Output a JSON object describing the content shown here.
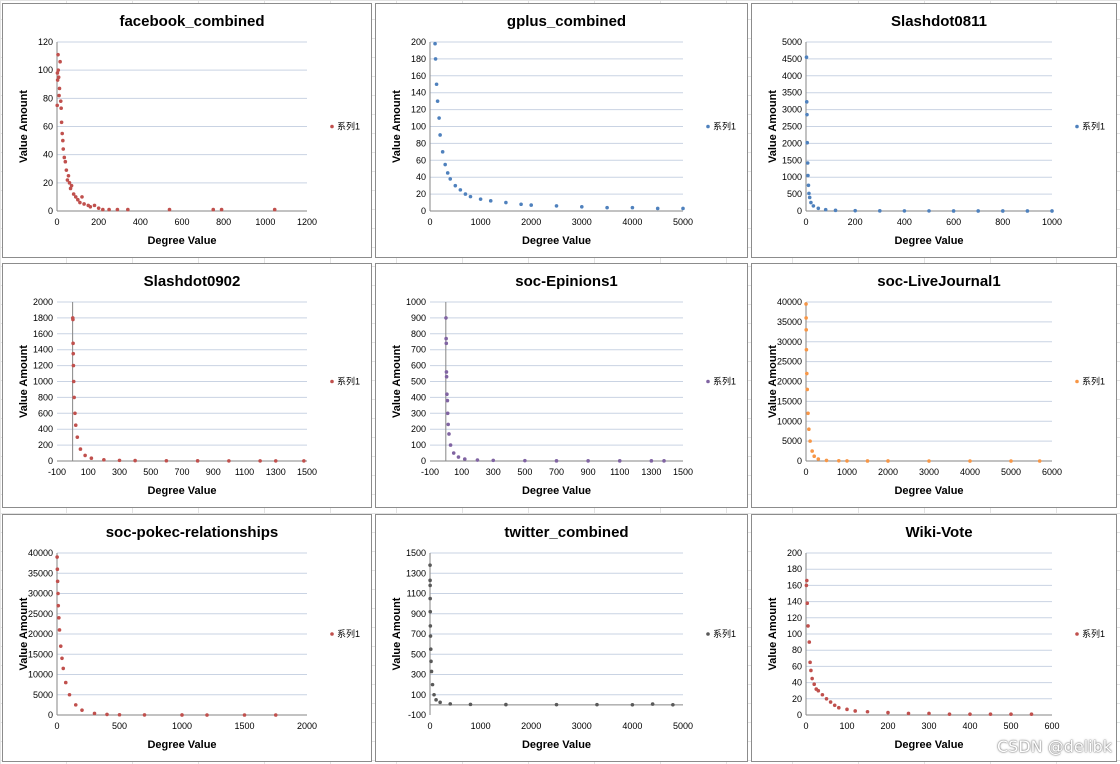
{
  "watermark": "CSDN @delibk",
  "chart_data": [
    {
      "type": "scatter",
      "title": "facebook_combined",
      "xlabel": "Degree Value",
      "ylabel": "Value Amount",
      "legend": "系列1",
      "legend_position": "right",
      "grid": "horizontal",
      "color": "#C0504D",
      "xlim": [
        0,
        1200
      ],
      "xticks": [
        0,
        200,
        400,
        600,
        800,
        1000,
        1200
      ],
      "ylim": [
        0,
        120
      ],
      "yticks": [
        0,
        20,
        40,
        60,
        80,
        100,
        120
      ],
      "points": [
        [
          1,
          75
        ],
        [
          2,
          98
        ],
        [
          3,
          93
        ],
        [
          5,
          111
        ],
        [
          6,
          100
        ],
        [
          8,
          95
        ],
        [
          10,
          82
        ],
        [
          12,
          87
        ],
        [
          15,
          106
        ],
        [
          18,
          78
        ],
        [
          20,
          73
        ],
        [
          22,
          63
        ],
        [
          25,
          55
        ],
        [
          28,
          50
        ],
        [
          30,
          44
        ],
        [
          35,
          38
        ],
        [
          40,
          35
        ],
        [
          45,
          29
        ],
        [
          50,
          22
        ],
        [
          55,
          25
        ],
        [
          60,
          20
        ],
        [
          65,
          16
        ],
        [
          70,
          18
        ],
        [
          80,
          12
        ],
        [
          90,
          10
        ],
        [
          100,
          8
        ],
        [
          110,
          6
        ],
        [
          120,
          10
        ],
        [
          130,
          5
        ],
        [
          150,
          4
        ],
        [
          160,
          3
        ],
        [
          180,
          4
        ],
        [
          200,
          2
        ],
        [
          220,
          1
        ],
        [
          250,
          1
        ],
        [
          290,
          1
        ],
        [
          340,
          1
        ],
        [
          540,
          1
        ],
        [
          750,
          1
        ],
        [
          790,
          1
        ],
        [
          1045,
          1
        ]
      ]
    },
    {
      "type": "scatter",
      "title": "gplus_combined",
      "xlabel": "Degree Value",
      "ylabel": "Value Amount",
      "legend": "系列1",
      "legend_position": "right",
      "grid": "horizontal",
      "color": "#4F81BD",
      "xlim": [
        0,
        5000
      ],
      "xticks": [
        0,
        1000,
        2000,
        3000,
        4000,
        5000
      ],
      "ylim": [
        0,
        200
      ],
      "yticks": [
        0,
        20,
        40,
        60,
        80,
        100,
        120,
        140,
        160,
        180,
        200
      ],
      "points": [
        [
          100,
          198
        ],
        [
          110,
          180
        ],
        [
          130,
          150
        ],
        [
          150,
          130
        ],
        [
          180,
          110
        ],
        [
          200,
          90
        ],
        [
          250,
          70
        ],
        [
          300,
          55
        ],
        [
          350,
          45
        ],
        [
          400,
          38
        ],
        [
          500,
          30
        ],
        [
          600,
          25
        ],
        [
          700,
          20
        ],
        [
          800,
          17
        ],
        [
          1000,
          14
        ],
        [
          1200,
          12
        ],
        [
          1500,
          10
        ],
        [
          1800,
          8
        ],
        [
          2000,
          7
        ],
        [
          2500,
          6
        ],
        [
          3000,
          5
        ],
        [
          3500,
          4
        ],
        [
          4000,
          4
        ],
        [
          4500,
          3
        ],
        [
          5000,
          3
        ]
      ]
    },
    {
      "type": "scatter",
      "title": "Slashdot0811",
      "xlabel": "Degree Value",
      "ylabel": "Value Amount",
      "legend": "系列1",
      "legend_position": "right",
      "grid": "horizontal",
      "color": "#4F81BD",
      "xlim": [
        0,
        1000
      ],
      "xticks": [
        0,
        200,
        400,
        600,
        800,
        1000
      ],
      "ylim": [
        0,
        5000
      ],
      "yticks": [
        0,
        500,
        1000,
        1500,
        2000,
        2500,
        3000,
        3500,
        4000,
        4500,
        5000
      ],
      "points": [
        [
          2,
          4550
        ],
        [
          3,
          3230
        ],
        [
          4,
          2850
        ],
        [
          5,
          2020
        ],
        [
          7,
          1420
        ],
        [
          8,
          1050
        ],
        [
          10,
          760
        ],
        [
          12,
          520
        ],
        [
          15,
          400
        ],
        [
          20,
          250
        ],
        [
          30,
          150
        ],
        [
          50,
          80
        ],
        [
          80,
          40
        ],
        [
          120,
          20
        ],
        [
          200,
          10
        ],
        [
          300,
          5
        ],
        [
          400,
          3
        ],
        [
          500,
          2
        ],
        [
          600,
          1
        ],
        [
          700,
          1
        ],
        [
          800,
          1
        ],
        [
          900,
          1
        ],
        [
          1000,
          1
        ]
      ]
    },
    {
      "type": "scatter",
      "title": "Slashdot0902",
      "xlabel": "Degree Value",
      "ylabel": "Value Amount",
      "legend": "系列1",
      "legend_position": "right",
      "grid": "horizontal",
      "color": "#C0504D",
      "xlim": [
        -100,
        1500
      ],
      "xticks": [
        -100,
        100,
        300,
        500,
        700,
        900,
        1100,
        1300,
        1500
      ],
      "ylim": [
        0,
        2000
      ],
      "yticks": [
        0,
        200,
        400,
        600,
        800,
        1000,
        1200,
        1400,
        1600,
        1800,
        2000
      ],
      "points": [
        [
          1,
          1800
        ],
        [
          2,
          1780
        ],
        [
          3,
          1480
        ],
        [
          4,
          1350
        ],
        [
          5,
          1200
        ],
        [
          7,
          1000
        ],
        [
          10,
          800
        ],
        [
          15,
          600
        ],
        [
          20,
          450
        ],
        [
          30,
          300
        ],
        [
          50,
          150
        ],
        [
          80,
          70
        ],
        [
          120,
          35
        ],
        [
          200,
          15
        ],
        [
          300,
          8
        ],
        [
          400,
          5
        ],
        [
          600,
          3
        ],
        [
          800,
          2
        ],
        [
          1000,
          1
        ],
        [
          1200,
          1
        ],
        [
          1300,
          1
        ],
        [
          1480,
          1
        ]
      ]
    },
    {
      "type": "scatter",
      "title": "soc-Epinions1",
      "xlabel": "Degree Value",
      "ylabel": "Value Amount",
      "legend": "系列1",
      "legend_position": "right",
      "grid": "horizontal",
      "color": "#8064A2",
      "xlim": [
        -100,
        1500
      ],
      "xticks": [
        -100,
        100,
        300,
        500,
        700,
        900,
        1100,
        1300,
        1500
      ],
      "ylim": [
        0,
        1000
      ],
      "yticks": [
        0,
        100,
        200,
        300,
        400,
        500,
        600,
        700,
        800,
        900,
        1000
      ],
      "points": [
        [
          1,
          900
        ],
        [
          2,
          770
        ],
        [
          3,
          740
        ],
        [
          4,
          560
        ],
        [
          5,
          530
        ],
        [
          7,
          420
        ],
        [
          10,
          380
        ],
        [
          12,
          300
        ],
        [
          15,
          230
        ],
        [
          20,
          170
        ],
        [
          30,
          100
        ],
        [
          50,
          50
        ],
        [
          80,
          25
        ],
        [
          120,
          12
        ],
        [
          200,
          6
        ],
        [
          300,
          4
        ],
        [
          500,
          2
        ],
        [
          700,
          1
        ],
        [
          900,
          1
        ],
        [
          1100,
          1
        ],
        [
          1300,
          1
        ],
        [
          1380,
          1
        ]
      ]
    },
    {
      "type": "scatter",
      "title": "soc-LiveJournal1",
      "xlabel": "Degree Value",
      "ylabel": "Value Amount",
      "legend": "系列1",
      "legend_position": "right",
      "grid": "horizontal",
      "color": "#F79646",
      "xlim": [
        0,
        6000
      ],
      "xticks": [
        0,
        1000,
        2000,
        3000,
        4000,
        5000,
        6000
      ],
      "ylim": [
        0,
        40000
      ],
      "yticks": [
        0,
        5000,
        10000,
        15000,
        20000,
        25000,
        30000,
        35000,
        40000
      ],
      "points": [
        [
          1,
          39500
        ],
        [
          3,
          36000
        ],
        [
          5,
          33000
        ],
        [
          10,
          28000
        ],
        [
          20,
          22000
        ],
        [
          30,
          18000
        ],
        [
          50,
          12000
        ],
        [
          70,
          8000
        ],
        [
          100,
          5000
        ],
        [
          150,
          2500
        ],
        [
          200,
          1200
        ],
        [
          300,
          500
        ],
        [
          500,
          150
        ],
        [
          800,
          50
        ],
        [
          1000,
          30
        ],
        [
          1500,
          10
        ],
        [
          2000,
          5
        ],
        [
          3000,
          2
        ],
        [
          4000,
          1
        ],
        [
          5000,
          1
        ],
        [
          5700,
          1
        ]
      ]
    },
    {
      "type": "scatter",
      "title": "soc-pokec-relationships",
      "xlabel": "Degree Value",
      "ylabel": "Value Amount",
      "legend": "系列1",
      "legend_position": "right",
      "grid": "horizontal",
      "color": "#C0504D",
      "xlim": [
        0,
        2000
      ],
      "xticks": [
        0,
        500,
        1000,
        1500,
        2000
      ],
      "ylim": [
        0,
        40000
      ],
      "yticks": [
        0,
        5000,
        10000,
        15000,
        20000,
        25000,
        30000,
        35000,
        40000
      ],
      "points": [
        [
          1,
          39000
        ],
        [
          3,
          36000
        ],
        [
          5,
          33000
        ],
        [
          8,
          30000
        ],
        [
          10,
          27000
        ],
        [
          15,
          24000
        ],
        [
          20,
          21000
        ],
        [
          30,
          17000
        ],
        [
          40,
          14000
        ],
        [
          50,
          11500
        ],
        [
          70,
          8000
        ],
        [
          100,
          5000
        ],
        [
          150,
          2500
        ],
        [
          200,
          1200
        ],
        [
          300,
          400
        ],
        [
          400,
          150
        ],
        [
          500,
          60
        ],
        [
          700,
          20
        ],
        [
          1000,
          5
        ],
        [
          1200,
          2
        ],
        [
          1500,
          1
        ],
        [
          1750,
          1
        ]
      ]
    },
    {
      "type": "scatter",
      "title": "twitter_combined",
      "xlabel": "Degree Value",
      "ylabel": "Value Amount",
      "legend": "系列1",
      "legend_position": "right",
      "grid": "horizontal",
      "color": "#595959",
      "xlim": [
        0,
        5000
      ],
      "xticks": [
        0,
        1000,
        2000,
        3000,
        4000,
        5000
      ],
      "ylim": [
        -100,
        1500
      ],
      "yticks": [
        -100,
        100,
        300,
        500,
        700,
        900,
        1100,
        1300,
        1500
      ],
      "points": [
        [
          1,
          1380
        ],
        [
          2,
          1230
        ],
        [
          3,
          1180
        ],
        [
          4,
          1050
        ],
        [
          5,
          920
        ],
        [
          7,
          780
        ],
        [
          10,
          680
        ],
        [
          15,
          550
        ],
        [
          20,
          430
        ],
        [
          30,
          330
        ],
        [
          50,
          200
        ],
        [
          80,
          100
        ],
        [
          120,
          50
        ],
        [
          200,
          25
        ],
        [
          400,
          10
        ],
        [
          800,
          5
        ],
        [
          1500,
          3
        ],
        [
          2500,
          2
        ],
        [
          3300,
          2
        ],
        [
          4000,
          1
        ],
        [
          4400,
          8
        ],
        [
          4800,
          1
        ]
      ]
    },
    {
      "type": "scatter",
      "title": "Wiki-Vote",
      "xlabel": "Degree Value",
      "ylabel": "Value Amount",
      "legend": "系列1",
      "legend_position": "right",
      "grid": "horizontal",
      "color": "#C0504D",
      "xlim": [
        0,
        600
      ],
      "xticks": [
        0,
        100,
        200,
        300,
        400,
        500,
        600
      ],
      "ylim": [
        0,
        200
      ],
      "yticks": [
        0,
        20,
        40,
        60,
        80,
        100,
        120,
        140,
        160,
        180,
        200
      ],
      "points": [
        [
          1,
          160
        ],
        [
          2,
          166
        ],
        [
          3,
          138
        ],
        [
          5,
          110
        ],
        [
          8,
          90
        ],
        [
          10,
          65
        ],
        [
          12,
          55
        ],
        [
          15,
          45
        ],
        [
          20,
          38
        ],
        [
          25,
          32
        ],
        [
          30,
          30
        ],
        [
          40,
          25
        ],
        [
          50,
          20
        ],
        [
          60,
          16
        ],
        [
          70,
          12
        ],
        [
          80,
          9
        ],
        [
          100,
          7
        ],
        [
          120,
          5
        ],
        [
          150,
          4
        ],
        [
          200,
          3
        ],
        [
          250,
          2
        ],
        [
          300,
          2
        ],
        [
          350,
          1
        ],
        [
          400,
          1
        ],
        [
          450,
          1
        ],
        [
          500,
          1
        ],
        [
          550,
          1
        ]
      ]
    }
  ]
}
